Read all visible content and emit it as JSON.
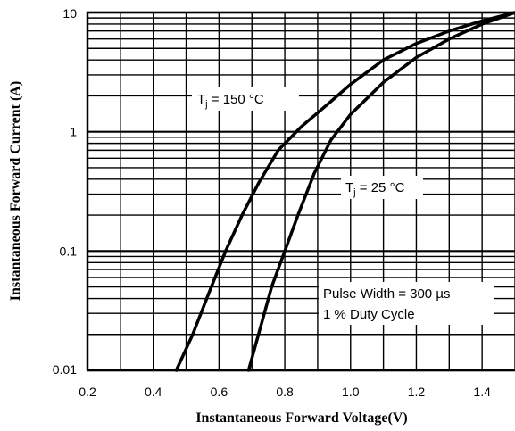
{
  "chart_data": {
    "type": "line",
    "title": "",
    "xlabel": "Instantaneous Forward Voltage(V)",
    "ylabel": "Instantaneous Forward Current (A)",
    "xlim": [
      0.2,
      1.5
    ],
    "ylim": [
      0.01,
      10
    ],
    "yscale": "log",
    "grid": true,
    "x_ticks": [
      "0.2",
      "0.4",
      "0.6",
      "0.8",
      "1.0",
      "1.2",
      "1.4"
    ],
    "y_ticks": [
      "10",
      "1",
      "0.1",
      "0.01"
    ],
    "series": [
      {
        "name": "Tj = 150 °C",
        "x": [
          0.47,
          0.52,
          0.57,
          0.62,
          0.67,
          0.72,
          0.78,
          0.85,
          0.93,
          1.0,
          1.1,
          1.2,
          1.3,
          1.4,
          1.5
        ],
        "y": [
          0.01,
          0.02,
          0.045,
          0.1,
          0.2,
          0.37,
          0.7,
          1.1,
          1.7,
          2.5,
          4.0,
          5.5,
          7.0,
          8.5,
          10
        ]
      },
      {
        "name": "Tj = 25 °C",
        "x": [
          0.69,
          0.72,
          0.76,
          0.8,
          0.84,
          0.89,
          0.94,
          1.0,
          1.1,
          1.2,
          1.3,
          1.4,
          1.5
        ],
        "y": [
          0.01,
          0.02,
          0.05,
          0.1,
          0.2,
          0.45,
          0.85,
          1.4,
          2.6,
          4.2,
          6.0,
          8.0,
          10
        ]
      }
    ],
    "annotations": [
      {
        "id": "t150",
        "main": "T",
        "sub": "j",
        "rest": " = 150 °C"
      },
      {
        "id": "t25",
        "main": "T",
        "sub": "j",
        "rest": " = 25 °C"
      },
      {
        "id": "pulse",
        "text": "Pulse Width = 300 µs"
      },
      {
        "id": "duty",
        "text": "1 % Duty Cycle"
      }
    ]
  }
}
